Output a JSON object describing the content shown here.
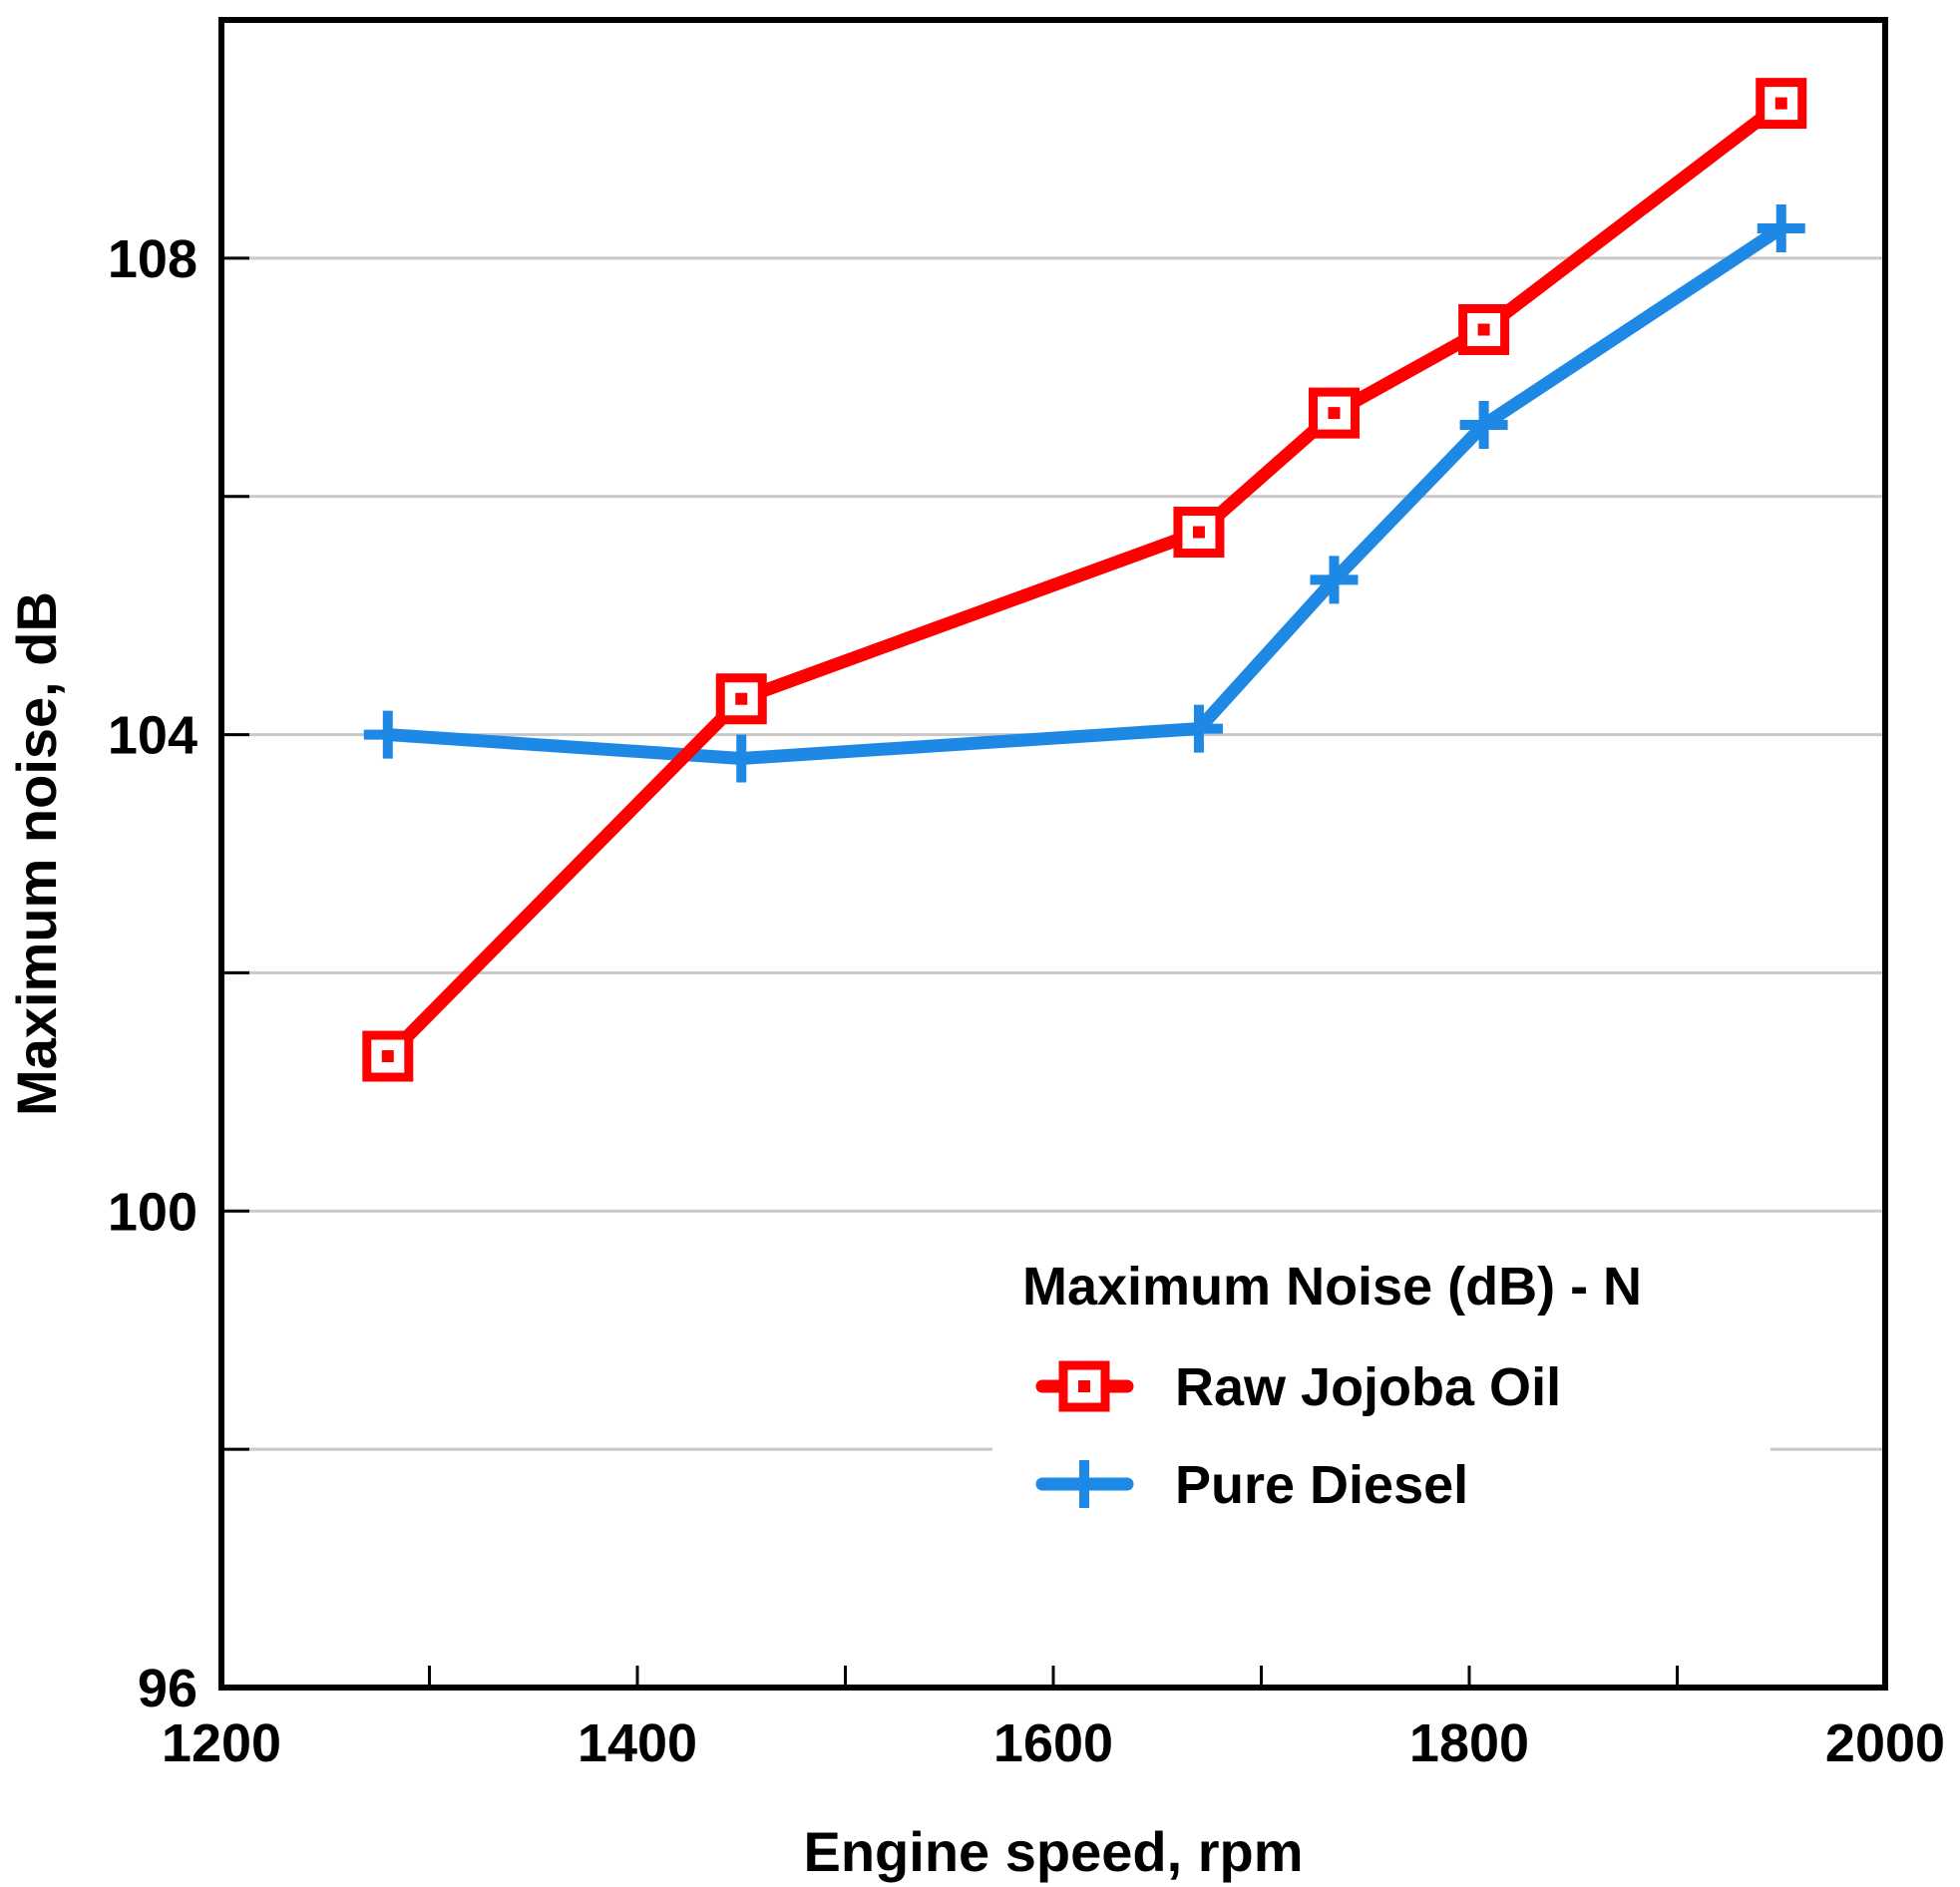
{
  "chart_data": {
    "type": "line",
    "title": "",
    "xlabel": "Engine speed, rpm",
    "ylabel": "Maximum noise, dB",
    "xlim": [
      1200,
      2000
    ],
    "ylim": [
      96,
      110
    ],
    "x_major_ticks": [
      1200,
      1400,
      1600,
      1800,
      2000
    ],
    "x_minor_ticks": [
      1300,
      1500,
      1700,
      1900
    ],
    "y_major_ticks": [
      96,
      100,
      104,
      108
    ],
    "y_minor_ticks": [
      98,
      102,
      106
    ],
    "x_tick_labels": [
      "1200",
      "1400",
      "1600",
      "1800",
      "2000"
    ],
    "y_tick_labels": [
      "96",
      "100",
      "104",
      "108"
    ],
    "grid": "horizontal",
    "legend": {
      "title": "Maximum Noise (dB)  - N",
      "placement": "lower-right"
    },
    "series": [
      {
        "name": "Raw Jojoba Oil",
        "color": "#ff0000",
        "marker": "square",
        "x": [
          1280,
          1450,
          1670,
          1735,
          1807,
          1950
        ],
        "y": [
          101.3,
          104.3,
          105.7,
          106.7,
          107.4,
          109.3
        ]
      },
      {
        "name": "Pure Diesel",
        "color": "#1e88e5",
        "marker": "plus",
        "x": [
          1280,
          1450,
          1670,
          1735,
          1807,
          1950
        ],
        "y": [
          104.0,
          103.8,
          104.05,
          105.3,
          106.6,
          108.25
        ]
      }
    ]
  }
}
